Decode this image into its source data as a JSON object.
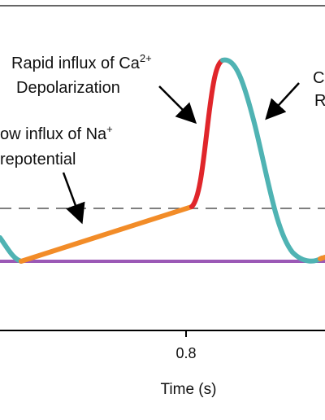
{
  "chart_data": {
    "type": "line",
    "xlabel": "Time (s)",
    "x_ticks": [
      "0.8"
    ],
    "threshold_line": "dashed",
    "baseline_line": "solid",
    "colors": {
      "baseline": "#9b59b6",
      "repolarization": "#4fb3b3",
      "prepotential": "#f28c28",
      "depolarization": "#e0262b",
      "annotation": "#000000"
    },
    "segments": [
      {
        "phase": "repolarization (tail)",
        "color": "repolarization"
      },
      {
        "phase": "prepotential",
        "color": "prepotential"
      },
      {
        "phase": "depolarization",
        "color": "depolarization"
      },
      {
        "phase": "repolarization",
        "color": "repolarization"
      }
    ],
    "annotations": {
      "ca_line1": "Rapid influx of Ca",
      "ca_sup": "2+",
      "ca_line2": "Depolarization",
      "na_line1": "ow influx of Na",
      "na_sup": "+",
      "na_line2": "repotential",
      "right_line1": "C",
      "right_line2": "R"
    }
  }
}
